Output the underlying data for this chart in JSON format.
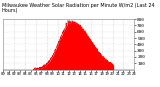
{
  "title": "Milwaukee Weather Solar Radiation per Minute W/m2 (Last 24 Hours)",
  "bg_color": "#ffffff",
  "plot_bg_color": "#ffffff",
  "grid_color": "#bbbbbb",
  "line_color": "#ff0000",
  "fill_color": "#ff0000",
  "ylim": [
    0,
    800
  ],
  "yticks": [
    100,
    200,
    300,
    400,
    500,
    600,
    700,
    800
  ],
  "num_points": 1440,
  "peak_hour": 12.5,
  "peak_value": 760,
  "sunrise": 5.5,
  "sunset": 20.2,
  "sigma_rise": 2.2,
  "sigma_fall": 3.5,
  "border_color": "#999999",
  "title_fontsize": 3.5,
  "tick_fontsize": 3.2
}
